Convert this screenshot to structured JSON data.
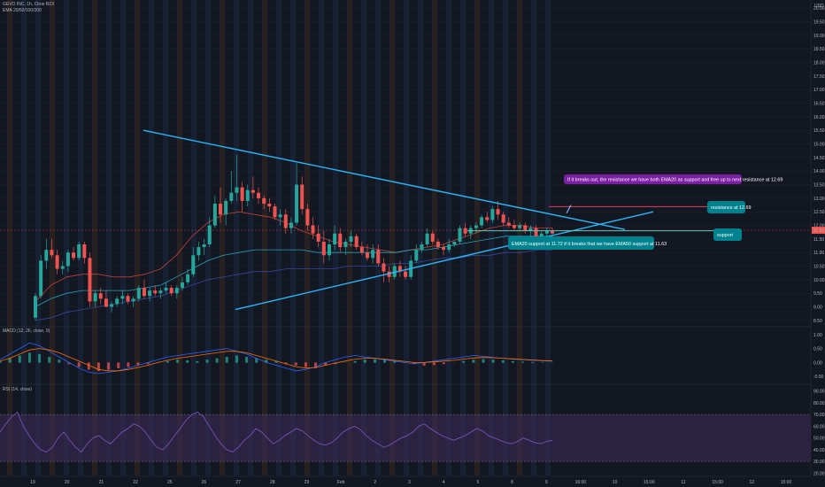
{
  "header": {
    "symbol_line": "GEVO INC, 1h, Cboe BZX",
    "ema_line": "EMA 20/50/100/200"
  },
  "colors": {
    "background": "#131722",
    "up": "#26a69a",
    "down": "#ef5350",
    "trendline": "#29b6f6",
    "support_line": "#4dd0c4",
    "resistance_line": "#e0405a",
    "macd_line": "#2962ff",
    "signal_line": "#ff6d00",
    "rsi_line": "#7e57c2",
    "rsi_band": "#3a2a55",
    "ann_purple": "#7b1fa2",
    "ann_teal": "#00838f",
    "session_orange": "#3a2a22",
    "session_blue": "#1e2a44"
  },
  "chart_data": {
    "type": "candlestick",
    "price_axis": {
      "ticks": [
        "USD",
        "20.00",
        "19.50",
        "19.00",
        "18.50",
        "18.00",
        "17.50",
        "17.00",
        "16.50",
        "16.00",
        "15.50",
        "15.00",
        "14.50",
        "14.00",
        "13.50",
        "13.00",
        "12.50",
        "12.00",
        "11.50",
        "11.00",
        "10.50",
        "10.00",
        "9.50",
        "9.00",
        "8.50"
      ],
      "range": [
        8.3,
        20.3
      ]
    },
    "time_axis": [
      "19",
      "20",
      "21",
      "22",
      "25",
      "26",
      "27",
      "28",
      "29",
      "Feb",
      "2",
      "3",
      "4",
      "5",
      "8",
      "9",
      "16:00",
      "10",
      "15:00",
      "11",
      "15:00",
      "12",
      "15:00"
    ],
    "candles": [
      [
        8.6,
        9.5,
        8.5,
        9.4
      ],
      [
        9.4,
        10.9,
        9.3,
        10.7
      ],
      [
        10.7,
        11.5,
        10.4,
        11.1
      ],
      [
        11.1,
        11.5,
        10.8,
        10.9
      ],
      [
        10.9,
        11.1,
        10.2,
        10.4
      ],
      [
        10.4,
        10.7,
        10.2,
        10.5
      ],
      [
        10.5,
        11.1,
        10.3,
        11.0
      ],
      [
        11.0,
        11.2,
        10.7,
        10.8
      ],
      [
        10.8,
        11.4,
        10.7,
        11.3
      ],
      [
        11.3,
        11.4,
        10.6,
        10.8
      ],
      [
        10.8,
        11.0,
        9.0,
        9.2
      ],
      [
        9.2,
        9.6,
        9.0,
        9.5
      ],
      [
        9.5,
        9.7,
        9.1,
        9.3
      ],
      [
        9.3,
        9.6,
        9.0,
        9.0
      ],
      [
        9.0,
        9.2,
        8.8,
        9.1
      ],
      [
        9.1,
        9.4,
        9.0,
        9.3
      ],
      [
        9.3,
        9.6,
        9.1,
        9.4
      ],
      [
        9.4,
        9.5,
        9.1,
        9.2
      ],
      [
        9.2,
        9.4,
        9.0,
        9.3
      ],
      [
        9.3,
        9.8,
        9.2,
        9.7
      ],
      [
        9.7,
        10.0,
        9.3,
        9.4
      ],
      [
        9.4,
        9.7,
        9.2,
        9.6
      ],
      [
        9.6,
        9.8,
        9.4,
        9.5
      ],
      [
        9.5,
        9.7,
        9.3,
        9.6
      ],
      [
        9.6,
        9.9,
        9.5,
        9.7
      ],
      [
        9.7,
        9.8,
        9.4,
        9.5
      ],
      [
        9.5,
        9.8,
        9.3,
        9.7
      ],
      [
        9.7,
        10.1,
        9.6,
        9.9
      ],
      [
        9.9,
        10.4,
        9.8,
        10.2
      ],
      [
        10.2,
        11.2,
        10.1,
        10.9
      ],
      [
        10.9,
        11.4,
        10.7,
        11.2
      ],
      [
        11.2,
        11.5,
        10.9,
        11.3
      ],
      [
        11.3,
        12.3,
        11.2,
        12.0
      ],
      [
        12.0,
        13.1,
        11.9,
        12.8
      ],
      [
        12.8,
        13.4,
        12.1,
        12.4
      ],
      [
        12.4,
        13.0,
        12.0,
        12.9
      ],
      [
        12.9,
        14.0,
        12.8,
        13.2
      ],
      [
        13.2,
        14.6,
        12.9,
        13.4
      ],
      [
        13.4,
        13.6,
        12.5,
        12.9
      ],
      [
        12.9,
        13.5,
        12.7,
        13.3
      ],
      [
        13.3,
        13.8,
        13.0,
        13.2
      ],
      [
        13.2,
        13.4,
        12.8,
        13.0
      ],
      [
        13.0,
        13.1,
        12.6,
        12.8
      ],
      [
        12.8,
        13.0,
        12.5,
        12.7
      ],
      [
        12.7,
        12.8,
        12.2,
        12.3
      ],
      [
        12.3,
        12.6,
        12.0,
        12.4
      ],
      [
        12.4,
        12.6,
        11.7,
        11.9
      ],
      [
        11.9,
        12.3,
        11.7,
        12.1
      ],
      [
        12.1,
        14.3,
        12.0,
        13.5
      ],
      [
        13.5,
        13.8,
        12.4,
        12.6
      ],
      [
        12.6,
        12.8,
        11.8,
        12.0
      ],
      [
        12.0,
        12.3,
        11.5,
        11.7
      ],
      [
        11.7,
        12.0,
        11.2,
        11.4
      ],
      [
        11.4,
        11.8,
        10.6,
        10.9
      ],
      [
        10.9,
        11.5,
        10.7,
        11.3
      ],
      [
        11.3,
        12.0,
        11.1,
        11.7
      ],
      [
        11.7,
        11.9,
        11.0,
        11.2
      ],
      [
        11.2,
        11.5,
        10.9,
        11.4
      ],
      [
        11.4,
        11.8,
        11.2,
        11.6
      ],
      [
        11.6,
        11.7,
        11.1,
        11.2
      ],
      [
        11.2,
        11.4,
        10.9,
        11.0
      ],
      [
        11.0,
        11.3,
        10.7,
        10.8
      ],
      [
        10.8,
        11.3,
        10.6,
        11.1
      ],
      [
        11.1,
        11.3,
        10.5,
        10.6
      ],
      [
        10.6,
        10.8,
        9.9,
        10.3
      ],
      [
        10.3,
        10.5,
        9.9,
        10.1
      ],
      [
        10.1,
        10.6,
        10.0,
        10.5
      ],
      [
        10.5,
        10.7,
        10.1,
        10.3
      ],
      [
        10.3,
        10.5,
        10.0,
        10.1
      ],
      [
        10.1,
        10.9,
        10.0,
        10.7
      ],
      [
        10.7,
        11.3,
        10.6,
        11.1
      ],
      [
        11.1,
        11.4,
        11.0,
        11.3
      ],
      [
        11.3,
        11.9,
        11.2,
        11.7
      ],
      [
        11.7,
        11.8,
        11.3,
        11.4
      ],
      [
        11.4,
        11.5,
        11.1,
        11.2
      ],
      [
        11.2,
        11.3,
        10.9,
        11.1
      ],
      [
        11.1,
        11.5,
        11.0,
        11.3
      ],
      [
        11.3,
        11.4,
        11.2,
        11.4
      ],
      [
        11.4,
        12.0,
        11.3,
        11.9
      ],
      [
        11.9,
        12.1,
        11.6,
        11.7
      ],
      [
        11.7,
        12.0,
        11.5,
        11.9
      ],
      [
        11.9,
        12.1,
        11.7,
        12.0
      ],
      [
        12.0,
        12.4,
        11.9,
        12.3
      ],
      [
        12.3,
        12.5,
        12.1,
        12.2
      ],
      [
        12.2,
        12.7,
        12.1,
        12.6
      ],
      [
        12.6,
        12.9,
        12.2,
        12.4
      ],
      [
        12.4,
        12.5,
        12.0,
        12.1
      ],
      [
        12.1,
        12.3,
        11.9,
        12.0
      ],
      [
        12.0,
        12.2,
        11.8,
        11.9
      ],
      [
        11.9,
        12.1,
        11.8,
        12.0
      ],
      [
        12.0,
        12.1,
        11.7,
        11.8
      ],
      [
        11.8,
        12.0,
        11.6,
        11.9
      ],
      [
        11.9,
        12.0,
        11.5,
        11.6
      ],
      [
        11.6,
        11.8,
        11.5,
        11.7
      ],
      [
        11.7,
        11.9,
        11.6,
        11.8
      ],
      [
        11.8,
        11.9,
        11.6,
        11.7
      ]
    ],
    "emas": [
      {
        "name": "EMA 20",
        "color": "#e74c3c",
        "values": [
          9.2,
          9.8,
          10.1,
          10.2,
          10.2,
          10.1,
          10.1,
          10.2,
          10.4,
          10.9,
          11.6,
          12.1,
          12.4,
          12.5,
          12.4,
          12.3,
          12.1,
          11.8,
          11.6,
          11.4,
          11.3,
          11.2,
          11.1,
          11.0,
          11.1,
          11.2,
          11.3,
          11.5,
          11.7,
          11.9,
          12.0,
          12.0,
          11.9,
          11.9
        ]
      },
      {
        "name": "EMA 50",
        "color": "#26c6da",
        "values": [
          9.0,
          9.3,
          9.5,
          9.6,
          9.6,
          9.6,
          9.6,
          9.7,
          9.8,
          10.1,
          10.4,
          10.7,
          10.9,
          11.0,
          11.1,
          11.1,
          11.1,
          11.1,
          11.0,
          11.0,
          11.0,
          11.0,
          11.0,
          11.0,
          11.1,
          11.1,
          11.2,
          11.3,
          11.4,
          11.5,
          11.6,
          11.6,
          11.6,
          11.6
        ]
      },
      {
        "name": "EMA 100",
        "color": "#3f51b5",
        "values": [
          8.5,
          8.6,
          8.8,
          8.9,
          9.0,
          9.1,
          9.2,
          9.3,
          9.4,
          9.6,
          9.8,
          10.0,
          10.1,
          10.2,
          10.3,
          10.3,
          10.4,
          10.4,
          10.4,
          10.4,
          10.5,
          10.5,
          10.5,
          10.6,
          10.6,
          10.7,
          10.8,
          10.8,
          10.9,
          10.9,
          11.0,
          11.0,
          11.1,
          11.1
        ]
      }
    ],
    "macd": {
      "axis_ticks": [
        "1.00",
        "0.50",
        "0.00",
        "-0.50"
      ],
      "range": [
        -0.75,
        1.25
      ],
      "histogram": [
        0.05,
        0.15,
        0.25,
        0.35,
        0.3,
        0.2,
        0.1,
        -0.05,
        -0.15,
        -0.25,
        -0.3,
        -0.25,
        -0.2,
        -0.15,
        -0.1,
        -0.05,
        0.0,
        0.05,
        0.1,
        0.08,
        0.05,
        0.1,
        0.15,
        0.2,
        0.25,
        0.2,
        0.15,
        0.1,
        0.05,
        -0.05,
        -0.1,
        -0.15,
        -0.2,
        -0.1,
        -0.05,
        0.0,
        0.05,
        0.1,
        0.12,
        0.1,
        0.05,
        0.0,
        -0.05,
        -0.1,
        -0.08,
        -0.05,
        0.0,
        0.05,
        0.1,
        0.12,
        0.1,
        0.08,
        0.05,
        0.03,
        0.02,
        0.01,
        0.0
      ],
      "macd_line": [
        0.1,
        0.3,
        0.5,
        0.7,
        0.6,
        0.4,
        0.2,
        0.0,
        -0.2,
        -0.35,
        -0.4,
        -0.35,
        -0.3,
        -0.2,
        -0.1,
        0.0,
        0.1,
        0.2,
        0.25,
        0.3,
        0.35,
        0.4,
        0.45,
        0.5,
        0.4,
        0.3,
        0.15,
        0.0,
        -0.1,
        -0.2,
        -0.3,
        -0.25,
        -0.15,
        0.0,
        0.1,
        0.2,
        0.25,
        0.2,
        0.15,
        0.1,
        0.05,
        0.0,
        -0.05,
        0.0,
        0.05,
        0.1,
        0.15,
        0.2,
        0.25,
        0.22,
        0.18,
        0.15,
        0.12,
        0.1,
        0.08,
        0.06,
        0.05
      ],
      "signal_line": [
        0.05,
        0.15,
        0.3,
        0.45,
        0.5,
        0.45,
        0.35,
        0.2,
        0.05,
        -0.1,
        -0.25,
        -0.3,
        -0.3,
        -0.25,
        -0.18,
        -0.1,
        0.0,
        0.08,
        0.15,
        0.2,
        0.25,
        0.3,
        0.35,
        0.4,
        0.4,
        0.35,
        0.25,
        0.15,
        0.05,
        -0.05,
        -0.15,
        -0.2,
        -0.18,
        -0.1,
        -0.02,
        0.05,
        0.12,
        0.15,
        0.15,
        0.12,
        0.08,
        0.04,
        0.0,
        0.0,
        0.02,
        0.05,
        0.08,
        0.12,
        0.16,
        0.18,
        0.17,
        0.15,
        0.13,
        0.11,
        0.09,
        0.07,
        0.06
      ]
    },
    "rsi": {
      "axis_ticks": [
        "90.00",
        "80.00",
        "70.00",
        "60.00",
        "50.00",
        "40.00",
        "30.00",
        "20.00"
      ],
      "range": [
        18,
        95
      ],
      "band": [
        30,
        70
      ],
      "values": [
        55,
        62,
        68,
        72,
        60,
        52,
        45,
        40,
        38,
        42,
        50,
        55,
        48,
        42,
        38,
        45,
        50,
        52,
        48,
        45,
        50,
        55,
        58,
        62,
        60,
        55,
        48,
        42,
        40,
        45,
        52,
        58,
        65,
        70,
        72,
        68,
        60,
        52,
        45,
        40,
        38,
        42,
        48,
        52,
        58,
        55,
        50,
        45,
        48,
        52,
        55,
        58,
        56,
        52,
        48,
        45,
        44,
        46,
        50,
        55,
        58,
        60,
        57,
        52,
        48,
        45,
        42,
        44,
        47,
        50,
        52,
        55,
        60,
        62,
        58,
        55,
        52,
        50,
        48,
        50,
        52,
        55,
        58,
        56,
        52,
        50,
        48,
        46,
        45,
        47,
        50,
        48,
        46,
        45,
        47,
        48
      ]
    }
  },
  "annotations": {
    "breakout_note": "If it breaks out, the resistance we have both EMA20 as support and free up to next resistance at 12.69",
    "resistance_label": "resistance at 12.69",
    "ema_support_note": "EMA20 support at 11.72 if it breaks that we have EMA50 support at 11.63",
    "support_label": "support",
    "current_price_tag": "11.82",
    "macd_legend": "MACD (12, 26, close, 9)",
    "rsi_legend": "RSI (14, close)"
  }
}
